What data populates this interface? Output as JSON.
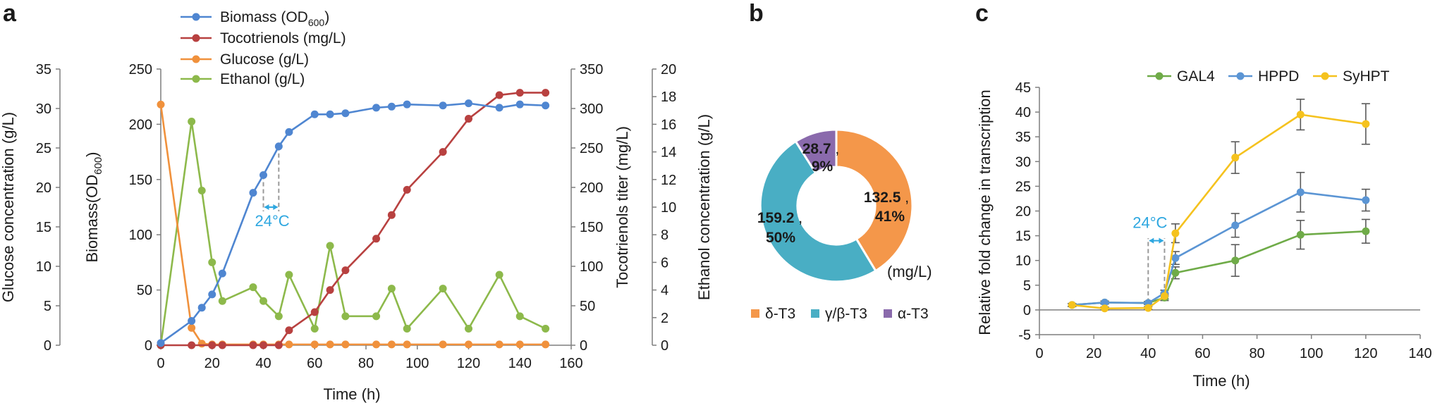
{
  "panels": {
    "a": "a",
    "b": "b",
    "c": "c"
  },
  "chart_data": [
    {
      "type": "line",
      "panel": "a",
      "xlabel": "Time (h)",
      "x_ticks": [
        0,
        20,
        40,
        60,
        80,
        100,
        120,
        140,
        160
      ],
      "xlim": [
        0,
        160
      ],
      "axes": [
        {
          "id": "glucose",
          "label": "Glucose concentration (g/L)",
          "range": [
            0,
            35
          ],
          "ticks": [
            0,
            5,
            10,
            15,
            20,
            25,
            30,
            35
          ],
          "position": "outer-left"
        },
        {
          "id": "biomass",
          "label_main": "Biomass(OD",
          "label_sub": "600",
          "label_end": ")",
          "range": [
            0,
            250
          ],
          "ticks": [
            0,
            50,
            100,
            150,
            200,
            250
          ],
          "position": "inner-left"
        },
        {
          "id": "toco",
          "label": "Tocotrienols titer (mg/L)",
          "range": [
            0,
            350
          ],
          "ticks": [
            0,
            50,
            100,
            150,
            200,
            250,
            300,
            350
          ],
          "position": "inner-right"
        },
        {
          "id": "ethanol",
          "label": "Ethanol concentration (g/L)",
          "range": [
            0,
            20
          ],
          "ticks": [
            0,
            2,
            4,
            6,
            8,
            10,
            12,
            14,
            16,
            18,
            20
          ],
          "position": "outer-right"
        }
      ],
      "series": [
        {
          "name": "Biomass (OD600)",
          "legend_main": "Biomass (OD",
          "legend_sub": "600",
          "legend_end": ")",
          "axis": "biomass",
          "color": "#4f86d1",
          "x": [
            0,
            12,
            16,
            20,
            24,
            36,
            40,
            46,
            50,
            60,
            66,
            72,
            84,
            90,
            96,
            110,
            120,
            132,
            140,
            150
          ],
          "y": [
            2,
            22,
            34,
            46,
            65,
            138,
            154,
            180,
            193,
            209,
            209,
            210,
            215,
            216,
            218,
            217,
            219,
            215,
            218,
            217
          ]
        },
        {
          "name": "Tocotrienols (mg/L)",
          "legend": "Tocotrienols (mg/L)",
          "axis": "toco",
          "color": "#b84140",
          "x": [
            0,
            12,
            20,
            24,
            36,
            40,
            46,
            50,
            60,
            66,
            72,
            84,
            90,
            96,
            110,
            120,
            132,
            140,
            150
          ],
          "y": [
            0,
            0,
            0,
            0,
            0,
            0,
            0,
            19,
            42,
            70,
            95,
            135,
            165,
            197,
            245,
            287,
            317,
            320,
            320
          ]
        },
        {
          "name": "Glucose (g/L)",
          "legend": "Glucose (g/L)",
          "axis": "glucose",
          "color": "#f0913c",
          "x": [
            0,
            12,
            16,
            20,
            24,
            36,
            40,
            46,
            50,
            60,
            66,
            72,
            84,
            90,
            96,
            110,
            120,
            132,
            140,
            150
          ],
          "y": [
            30.5,
            2.2,
            0.2,
            0.1,
            0.1,
            0.1,
            0.1,
            0.1,
            0.1,
            0.1,
            0.1,
            0.1,
            0.1,
            0.1,
            0.1,
            0.1,
            0.1,
            0.1,
            0.1,
            0.1
          ]
        },
        {
          "name": "Ethanol (g/L)",
          "legend": "Ethanol (g/L)",
          "axis": "ethanol",
          "color": "#8db94b",
          "x": [
            0,
            12,
            16,
            20,
            24,
            36,
            40,
            46,
            50,
            60,
            66,
            72,
            84,
            90,
            96,
            110,
            120,
            132,
            140,
            150
          ],
          "y": [
            0,
            16.2,
            11.2,
            6,
            3.2,
            4.2,
            3.2,
            2.1,
            5.1,
            1.2,
            7.2,
            2.1,
            2.1,
            4.1,
            1.2,
            4.1,
            1.2,
            5.1,
            2.1,
            1.2
          ]
        }
      ],
      "annotation": {
        "text": "24°C",
        "x_start": 40,
        "x_end": 46,
        "color": "#2ea7e0"
      }
    },
    {
      "type": "pie",
      "panel": "b",
      "style": "donut",
      "unit_label": "(mg/L)",
      "slices": [
        {
          "label": "δ-T3",
          "value": 132.5,
          "percent": "41%",
          "value_text": "132.5",
          "color": "#f4974a"
        },
        {
          "label": "γ/β-T3",
          "value": 159.2,
          "percent": "50%",
          "value_text": "159.2",
          "color": "#49aec4"
        },
        {
          "label": "α-T3",
          "value": 28.7,
          "percent": "9%",
          "value_text": "28.7",
          "color": "#8a6aac"
        }
      ]
    },
    {
      "type": "line",
      "panel": "c",
      "xlabel": "Time (h)",
      "ylabel": "Relative fold change in transcription",
      "x_ticks": [
        0,
        20,
        40,
        60,
        80,
        100,
        120,
        140
      ],
      "y_ticks": [
        -5,
        0,
        5,
        10,
        15,
        20,
        25,
        30,
        35,
        40,
        45
      ],
      "xlim": [
        0,
        140
      ],
      "ylim": [
        -5,
        45
      ],
      "series": [
        {
          "name": "GAL4",
          "color": "#6fab48",
          "x": [
            12,
            24,
            40,
            46,
            50,
            72,
            96,
            120
          ],
          "y": [
            1,
            1.5,
            1.4,
            2.5,
            7.5,
            10,
            15.2,
            15.9
          ],
          "err": [
            0.3,
            0.3,
            0.3,
            0.6,
            1.2,
            3.2,
            2.9,
            2.4
          ]
        },
        {
          "name": "HPPD",
          "color": "#5b95d4",
          "x": [
            12,
            24,
            40,
            46,
            50,
            72,
            96,
            120
          ],
          "y": [
            1,
            1.5,
            1.4,
            3.4,
            10.5,
            17.1,
            23.8,
            22.2
          ],
          "err": [
            0.3,
            0.3,
            0.3,
            0.6,
            1.3,
            2.4,
            4,
            2.2
          ]
        },
        {
          "name": "SyHPT",
          "color": "#f5c21e",
          "x": [
            12,
            24,
            40,
            46,
            50,
            72,
            96,
            120
          ],
          "y": [
            1,
            0.3,
            0.4,
            2.8,
            15.5,
            30.8,
            39.5,
            37.6
          ],
          "err": [
            0.3,
            0.3,
            0.3,
            0.6,
            1.9,
            3.2,
            3.1,
            4.1
          ]
        }
      ],
      "annotation": {
        "text": "24°C",
        "x_start": 40,
        "x_end": 46,
        "color": "#2ea7e0"
      }
    }
  ]
}
